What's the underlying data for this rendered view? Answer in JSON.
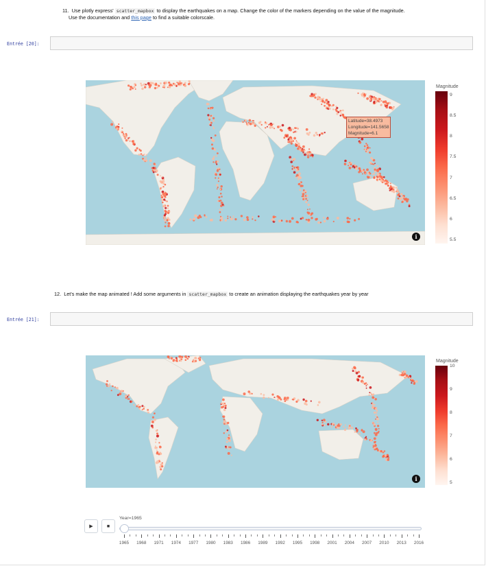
{
  "cell_11": {
    "number": "11.",
    "text_1": "Use plotly express'",
    "code": "scatter_mapbox",
    "text_2": "to display the earthquakes on a map. Change the color of the markers depending on the value of the magnitude.",
    "line2_text": "Use the documentation and",
    "link_text": "this page",
    "line2_end": "to find a suitable colorscale."
  },
  "prompt_20": "Entrée [20]:",
  "map1": {
    "colorbar_title": "Magnitude",
    "colorbar_ticks": [
      "9",
      "8.5",
      "8",
      "7.5",
      "7",
      "6.5",
      "6",
      "5.5"
    ],
    "hover": {
      "latitude": "Latitude=38.4973",
      "longitude": "Longitude=141.5658",
      "magnitude": "Magnitude=6.1"
    },
    "info_icon": "i"
  },
  "cell_12": {
    "number": "12.",
    "text_1": "Let's make the map animated ! Add some arguments in",
    "code": "scatter_mapbox",
    "text_2": "to create an animation displaying the earthquakes year by year"
  },
  "prompt_21": "Entrée [21]:",
  "map2": {
    "colorbar_title": "Magnitude",
    "colorbar_ticks": [
      "10",
      "9",
      "8",
      "7",
      "6",
      "5"
    ],
    "info_icon": "i"
  },
  "animation": {
    "play_icon": "play-icon",
    "stop_icon": "stop-icon",
    "current_label": "Year=1965",
    "current_value": 1965,
    "tick_labels": [
      "1965",
      "1968",
      "1971",
      "1974",
      "1977",
      "1980",
      "1983",
      "1986",
      "1989",
      "1992",
      "1995",
      "1998",
      "2001",
      "2004",
      "2007",
      "2010",
      "2013",
      "2016"
    ]
  },
  "colors": {
    "ocean": "#aad3df",
    "land": "#f2efe9",
    "marker": "#fb6a4a",
    "marker_dark": "#cb181d",
    "link": "#2a62b3"
  }
}
